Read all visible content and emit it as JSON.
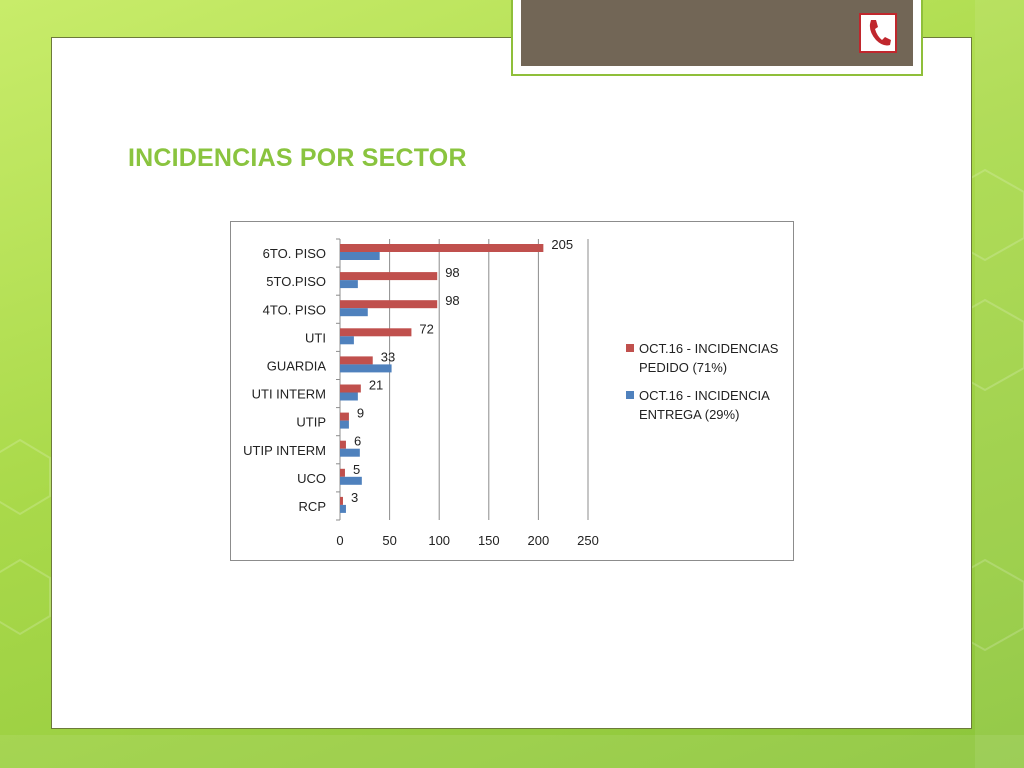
{
  "slide": {
    "title": "INCIDENCIAS POR SECTOR"
  },
  "icons": {
    "phone": "phone-icon"
  },
  "colors": {
    "title": "#8ac43f",
    "pedido": "#c0504d",
    "entrega": "#4f81bd",
    "header_band": "#726656"
  },
  "chart_data": {
    "type": "bar",
    "orientation": "horizontal",
    "categories": [
      "6TO. PISO",
      "5TO.PISO",
      "4TO. PISO",
      "UTI",
      "GUARDIA",
      "UTI INTERM",
      "UTIP",
      "UTIP INTERM",
      "UCO",
      "RCP"
    ],
    "series": [
      {
        "name": "OCT.16 - INCIDENCIAS PEDIDO (71%)",
        "values": [
          205,
          98,
          98,
          72,
          33,
          21,
          9,
          6,
          5,
          3
        ],
        "data_labels": [
          "205",
          "98",
          "98",
          "72",
          "33",
          "21",
          "9",
          "6",
          "5",
          "3"
        ]
      },
      {
        "name": "OCT.16 - INCIDENCIA ENTREGA (29%)",
        "values": [
          40,
          18,
          28,
          14,
          52,
          18,
          9,
          20,
          22,
          6
        ]
      }
    ],
    "xlim": [
      0,
      250
    ],
    "xticks": [
      "0",
      "50",
      "100",
      "150",
      "200",
      "250"
    ],
    "legend_entries": [
      {
        "lines": [
          "OCT.16 - INCIDENCIAS",
          "PEDIDO (71%)"
        ]
      },
      {
        "lines": [
          "OCT.16 - INCIDENCIA",
          "ENTREGA (29%)"
        ]
      }
    ],
    "legend_position": "right",
    "grid": true
  }
}
